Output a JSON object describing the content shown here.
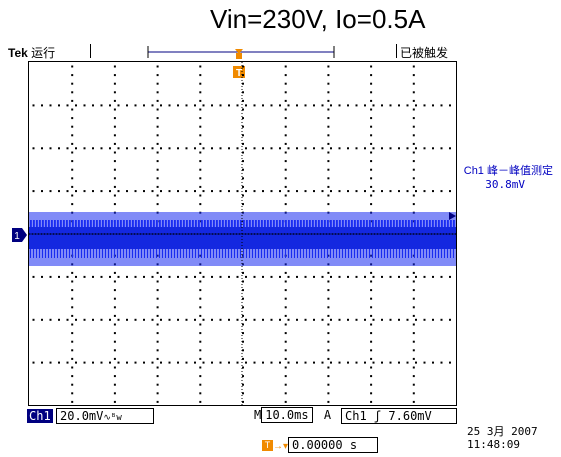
{
  "title": "Vin=230V, Io=0.5A",
  "header": {
    "brand": "Tek",
    "run_status": "运行",
    "trigger_status": "已被触发"
  },
  "measurement": {
    "label": "Ch1 峰－峰值测定",
    "value": "30.8mV"
  },
  "status_bar": {
    "channel": "Ch1",
    "scale": "20.0mV",
    "bw_limit_icon": "bw-icon",
    "timebase_prefix": "M",
    "timebase": "10.0ms",
    "acq_mode": "A",
    "trigger_source": "Ch1",
    "trigger_slope": "rising-edge-icon",
    "trigger_level": "7.60mV"
  },
  "trigger_position": {
    "value": "0.00000 s"
  },
  "datetime": {
    "date": "25 3月  2007",
    "time": "11:48:09"
  },
  "colors": {
    "trace": "#1a2cf0",
    "trigger_marker": "#f08a00",
    "channel_badge": "#000080",
    "grid": "#000000"
  }
}
